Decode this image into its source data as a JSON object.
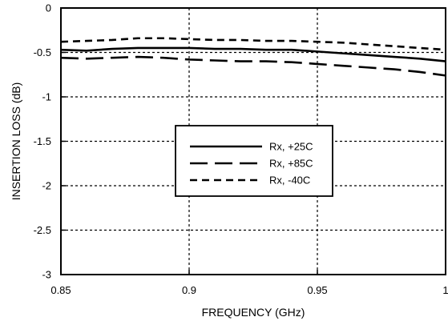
{
  "chart_data": {
    "type": "line",
    "title": "",
    "xlabel": "FREQUENCY (GHz)",
    "ylabel": "INSERTION LOSS (dB)",
    "xlim": [
      0.85,
      1.0
    ],
    "ylim": [
      -3,
      0
    ],
    "x_ticks": [
      0.85,
      0.9,
      0.95,
      1.0
    ],
    "x_tick_labels": [
      "0.85",
      "0.9",
      "0.95",
      "1"
    ],
    "y_ticks": [
      0,
      -0.5,
      -1,
      -1.5,
      -2,
      -2.5,
      -3
    ],
    "y_tick_labels": [
      "0",
      "-0.5",
      "-1",
      "-1.5",
      "-2",
      "-2.5",
      "-3"
    ],
    "grid": true,
    "legend_position": "center",
    "series": [
      {
        "name": "Rx, +25C",
        "style": "solid",
        "x": [
          0.85,
          0.86,
          0.87,
          0.88,
          0.89,
          0.9,
          0.91,
          0.92,
          0.93,
          0.94,
          0.95,
          0.96,
          0.97,
          0.98,
          0.99,
          1.0
        ],
        "y": [
          -0.47,
          -0.48,
          -0.46,
          -0.45,
          -0.45,
          -0.45,
          -0.46,
          -0.46,
          -0.47,
          -0.47,
          -0.49,
          -0.51,
          -0.53,
          -0.55,
          -0.57,
          -0.6
        ]
      },
      {
        "name": "Rx, +85C",
        "style": "long-dash",
        "x": [
          0.85,
          0.86,
          0.87,
          0.88,
          0.89,
          0.9,
          0.91,
          0.92,
          0.93,
          0.94,
          0.95,
          0.96,
          0.97,
          0.98,
          0.99,
          1.0
        ],
        "y": [
          -0.56,
          -0.57,
          -0.56,
          -0.55,
          -0.56,
          -0.58,
          -0.59,
          -0.6,
          -0.6,
          -0.61,
          -0.63,
          -0.65,
          -0.67,
          -0.69,
          -0.72,
          -0.76
        ]
      },
      {
        "name": "Rx,  -40C",
        "style": "short-dash",
        "x": [
          0.85,
          0.86,
          0.87,
          0.88,
          0.89,
          0.9,
          0.91,
          0.92,
          0.93,
          0.94,
          0.95,
          0.96,
          0.97,
          0.98,
          0.99,
          1.0
        ],
        "y": [
          -0.38,
          -0.37,
          -0.36,
          -0.34,
          -0.34,
          -0.35,
          -0.36,
          -0.36,
          -0.37,
          -0.37,
          -0.38,
          -0.39,
          -0.41,
          -0.43,
          -0.45,
          -0.47
        ]
      }
    ]
  }
}
